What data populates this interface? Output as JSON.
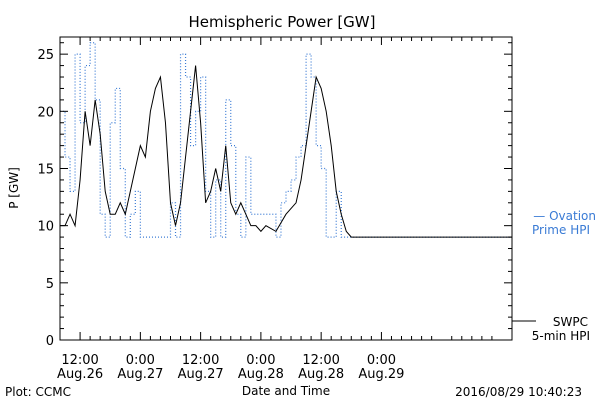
{
  "chart_data": {
    "type": "line",
    "title": "Hemispheric Power [GW]",
    "xlabel": "Date and Time",
    "ylabel": "P [GW]",
    "ylim": [
      0,
      26.5
    ],
    "yticks": [
      0,
      5,
      10,
      15,
      20,
      25
    ],
    "xlim": [
      "2016-08-26T08:00",
      "2016-08-30T02:00"
    ],
    "xticks": [
      {
        "t": "2016-08-26T12:00",
        "time": "12:00",
        "date": "Aug.26"
      },
      {
        "t": "2016-08-27T00:00",
        "time": "0:00",
        "date": "Aug.27"
      },
      {
        "t": "2016-08-27T12:00",
        "time": "12:00",
        "date": "Aug.27"
      },
      {
        "t": "2016-08-28T00:00",
        "time": "0:00",
        "date": "Aug.28"
      },
      {
        "t": "2016-08-28T12:00",
        "time": "12:00",
        "date": "Aug.28"
      },
      {
        "t": "2016-08-29T00:00",
        "time": "0:00",
        "date": "Aug.29"
      }
    ],
    "series": [
      {
        "name": "Ovation Prime HPI",
        "legend_lines": [
          "— Ovation",
          "Prime HPI"
        ],
        "color": "#3a7bd5",
        "style": "dotted",
        "step": true,
        "x": [
          "2016-08-26T08:00",
          "2016-08-26T09:00",
          "2016-08-26T10:00",
          "2016-08-26T11:00",
          "2016-08-26T12:00",
          "2016-08-26T13:00",
          "2016-08-26T14:00",
          "2016-08-26T15:00",
          "2016-08-26T16:00",
          "2016-08-26T17:00",
          "2016-08-26T18:00",
          "2016-08-26T19:00",
          "2016-08-26T20:00",
          "2016-08-26T21:00",
          "2016-08-26T22:00",
          "2016-08-26T23:00",
          "2016-08-27T00:00",
          "2016-08-27T03:00",
          "2016-08-27T06:00",
          "2016-08-27T07:00",
          "2016-08-27T08:00",
          "2016-08-27T09:00",
          "2016-08-27T10:00",
          "2016-08-27T11:00",
          "2016-08-27T12:00",
          "2016-08-27T13:00",
          "2016-08-27T14:00",
          "2016-08-27T15:00",
          "2016-08-27T16:00",
          "2016-08-27T17:00",
          "2016-08-27T18:00",
          "2016-08-27T19:00",
          "2016-08-27T20:00",
          "2016-08-27T21:00",
          "2016-08-27T22:00",
          "2016-08-27T23:00",
          "2016-08-28T01:00",
          "2016-08-28T03:00",
          "2016-08-28T04:00",
          "2016-08-28T05:00",
          "2016-08-28T06:00",
          "2016-08-28T07:00",
          "2016-08-28T08:00",
          "2016-08-28T09:00",
          "2016-08-28T10:00",
          "2016-08-28T11:00",
          "2016-08-28T12:00",
          "2016-08-28T13:00",
          "2016-08-28T14:00",
          "2016-08-28T15:00",
          "2016-08-28T16:00",
          "2016-08-28T17:00",
          "2016-08-28T18:00",
          "2016-08-28T19:00",
          "2016-08-30T02:00"
        ],
        "values": [
          20,
          16,
          13,
          25,
          19,
          24,
          26,
          21,
          11,
          9,
          19,
          22,
          15,
          9,
          11,
          13,
          9,
          9,
          12,
          9,
          25,
          23,
          17,
          20,
          23,
          13,
          9,
          14,
          9,
          21,
          17,
          11,
          9,
          16,
          11,
          11,
          11,
          9,
          12,
          13,
          14,
          16,
          17,
          25,
          23,
          17,
          15,
          9,
          9,
          13,
          9,
          9,
          9,
          9,
          9
        ]
      },
      {
        "name": "SWPC 5-min HPI",
        "legend_lines": [
          "SWPC",
          "5-min HPI"
        ],
        "color": "#000000",
        "style": "solid",
        "step": false,
        "x": [
          "2016-08-26T08:00",
          "2016-08-26T09:00",
          "2016-08-26T10:00",
          "2016-08-26T11:00",
          "2016-08-26T12:00",
          "2016-08-26T13:00",
          "2016-08-26T14:00",
          "2016-08-26T15:00",
          "2016-08-26T16:00",
          "2016-08-26T17:00",
          "2016-08-26T18:00",
          "2016-08-26T19:00",
          "2016-08-26T20:00",
          "2016-08-26T21:00",
          "2016-08-26T22:00",
          "2016-08-26T23:00",
          "2016-08-27T00:00",
          "2016-08-27T01:00",
          "2016-08-27T02:00",
          "2016-08-27T03:00",
          "2016-08-27T04:00",
          "2016-08-27T05:00",
          "2016-08-27T06:00",
          "2016-08-27T07:00",
          "2016-08-27T08:00",
          "2016-08-27T09:00",
          "2016-08-27T10:00",
          "2016-08-27T11:00",
          "2016-08-27T12:00",
          "2016-08-27T13:00",
          "2016-08-27T14:00",
          "2016-08-27T15:00",
          "2016-08-27T16:00",
          "2016-08-27T17:00",
          "2016-08-27T18:00",
          "2016-08-27T19:00",
          "2016-08-27T20:00",
          "2016-08-27T21:00",
          "2016-08-27T22:00",
          "2016-08-27T23:00",
          "2016-08-28T00:00",
          "2016-08-28T01:00",
          "2016-08-28T03:00",
          "2016-08-28T05:00",
          "2016-08-28T07:00",
          "2016-08-28T08:00",
          "2016-08-28T09:00",
          "2016-08-28T10:00",
          "2016-08-28T11:00",
          "2016-08-28T12:00",
          "2016-08-28T13:00",
          "2016-08-28T14:00",
          "2016-08-28T15:00",
          "2016-08-28T16:00",
          "2016-08-28T17:00",
          "2016-08-28T18:00",
          "2016-08-30T02:00"
        ],
        "values": [
          10,
          10,
          11,
          10,
          14,
          20,
          17,
          21,
          18,
          13,
          11,
          11,
          12,
          11,
          13,
          15,
          17,
          16,
          20,
          22,
          23,
          19,
          12,
          10,
          12,
          16,
          20,
          24,
          19,
          12,
          13,
          15,
          13,
          17,
          12,
          11,
          12,
          11,
          10,
          10,
          9.5,
          10,
          9.5,
          11,
          12,
          14,
          17,
          20,
          23,
          22,
          20,
          17,
          13,
          11,
          9.5,
          9,
          9
        ]
      }
    ],
    "grid": false,
    "legend": "right"
  },
  "footer": {
    "left": "Plot: CCMC",
    "right": "2016/08/29 10:40:23"
  },
  "colors": {
    "ovation": "#3a7bd5",
    "swpc": "#000000"
  }
}
